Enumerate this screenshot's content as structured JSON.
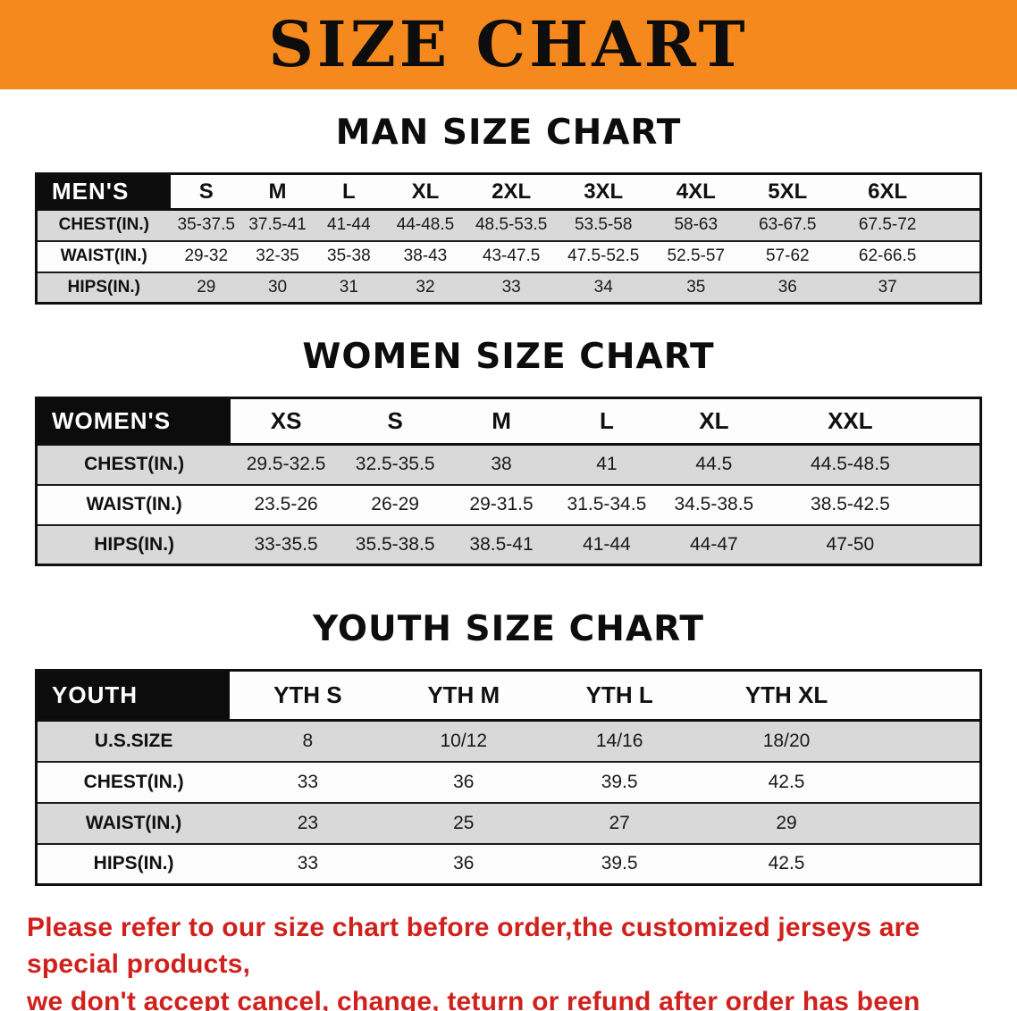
{
  "banner": {
    "title": "SIZE CHART"
  },
  "colors": {
    "banner_bg": "#f6891e",
    "header_cell_bg": "#0c0c0c",
    "row_shade": "#d9d9d9",
    "notice_text": "#d0211c"
  },
  "sections": [
    {
      "heading": "MAN SIZE CHART",
      "table": {
        "corner": "MEN'S",
        "columns": [
          "S",
          "M",
          "L",
          "XL",
          "2XL",
          "3XL",
          "4XL",
          "5XL",
          "6XL"
        ],
        "rows": [
          {
            "label": "CHEST(IN.)",
            "values": [
              "35-37.5",
              "37.5-41",
              "41-44",
              "44-48.5",
              "48.5-53.5",
              "53.5-58",
              "58-63",
              "63-67.5",
              "67.5-72"
            ]
          },
          {
            "label": "WAIST(IN.)",
            "values": [
              "29-32",
              "32-35",
              "35-38",
              "38-43",
              "43-47.5",
              "47.5-52.5",
              "52.5-57",
              "57-62",
              "62-66.5"
            ]
          },
          {
            "label": "HIPS(IN.)",
            "values": [
              "29",
              "30",
              "31",
              "32",
              "33",
              "34",
              "35",
              "36",
              "37"
            ]
          }
        ]
      }
    },
    {
      "heading": "WOMEN SIZE CHART",
      "table": {
        "corner": "WOMEN'S",
        "columns": [
          "XS",
          "S",
          "M",
          "L",
          "XL",
          "XXL"
        ],
        "rows": [
          {
            "label": "CHEST(IN.)",
            "values": [
              "29.5-32.5",
              "32.5-35.5",
              "38",
              "41",
              "44.5",
              "44.5-48.5"
            ]
          },
          {
            "label": "WAIST(IN.)",
            "values": [
              "23.5-26",
              "26-29",
              "29-31.5",
              "31.5-34.5",
              "34.5-38.5",
              "38.5-42.5"
            ]
          },
          {
            "label": "HIPS(IN.)",
            "values": [
              "33-35.5",
              "35.5-38.5",
              "38.5-41",
              "41-44",
              "44-47",
              "47-50"
            ]
          }
        ]
      }
    },
    {
      "heading": "YOUTH SIZE CHART",
      "table": {
        "corner": "YOUTH",
        "columns": [
          "YTH S",
          "YTH M",
          "YTH L",
          "YTH XL"
        ],
        "rows": [
          {
            "label": "U.S.SIZE",
            "values": [
              "8",
              "10/12",
              "14/16",
              "18/20"
            ]
          },
          {
            "label": "CHEST(IN.)",
            "values": [
              "33",
              "36",
              "39.5",
              "42.5"
            ]
          },
          {
            "label": "WAIST(IN.)",
            "values": [
              "23",
              "25",
              "27",
              "29"
            ]
          },
          {
            "label": "HIPS(IN.)",
            "values": [
              "33",
              "36",
              "39.5",
              "42.5"
            ]
          }
        ]
      }
    }
  ],
  "footer": {
    "line1": "Please refer to our size chart before order,the customized jerseys are special products,",
    "line2": "we don't accept cancel, change, teturn or refund after order has been placed!"
  }
}
